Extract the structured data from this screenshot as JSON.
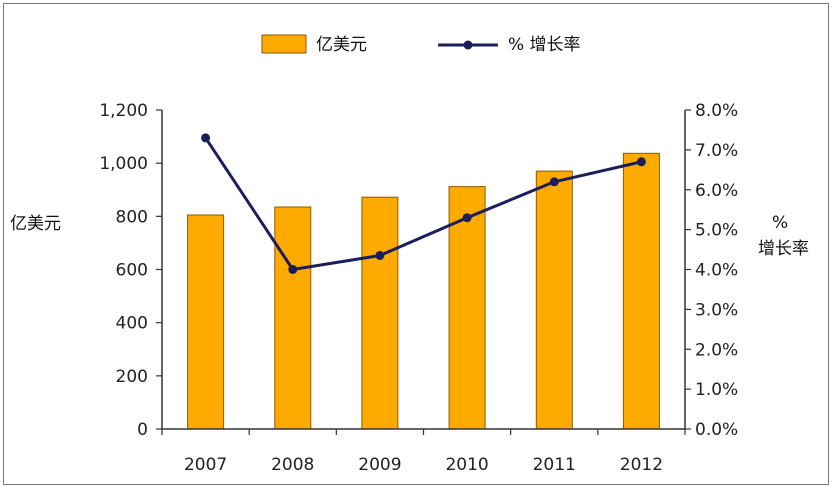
{
  "chart_data": {
    "type": "bar",
    "categories": [
      "2007",
      "2008",
      "2009",
      "2010",
      "2011",
      "2012"
    ],
    "series": [
      {
        "name": "亿美元",
        "type": "bar",
        "axis": "left",
        "values": [
          805,
          835,
          872,
          912,
          970,
          1037
        ]
      },
      {
        "name": "% 增长率",
        "type": "line",
        "axis": "right",
        "values": [
          7.3,
          4.0,
          4.35,
          5.3,
          6.2,
          6.7
        ]
      }
    ],
    "left_axis": {
      "label": "亿美元",
      "ticks": [
        "0",
        "200",
        "400",
        "600",
        "800",
        "1,000",
        "1,200"
      ],
      "ylim": [
        0,
        1200
      ]
    },
    "right_axis": {
      "label_line1": "%",
      "label_line2": "增长率",
      "ticks": [
        "0.0%",
        "1.0%",
        "2.0%",
        "3.0%",
        "4.0%",
        "5.0%",
        "6.0%",
        "7.0%",
        "8.0%"
      ],
      "ylim": [
        0,
        8
      ]
    },
    "legend": {
      "position": "top",
      "items": [
        "亿美元",
        "% 增长率"
      ]
    },
    "grid": false,
    "colors": {
      "bar_fill": "#FFAA00",
      "bar_stroke": "#8A5A00",
      "line": "#1A1F5C",
      "axis": "#333333"
    }
  }
}
